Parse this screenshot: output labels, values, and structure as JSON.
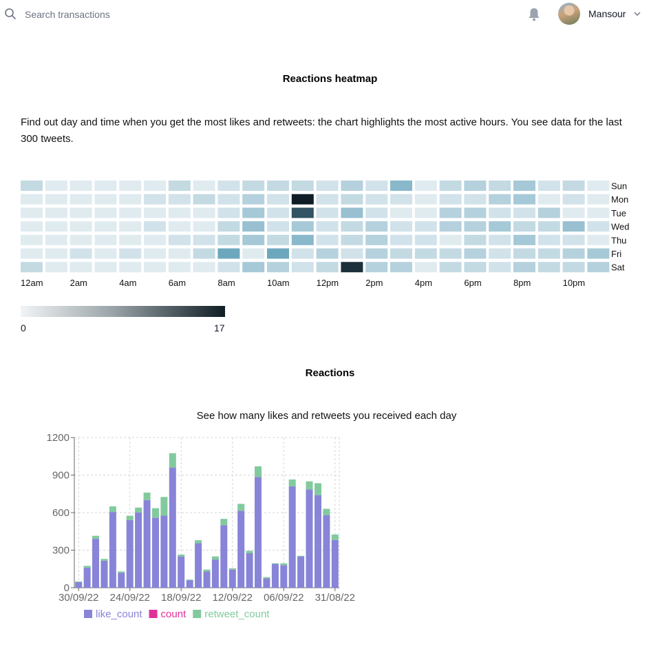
{
  "search": {
    "placeholder": "Search transactions"
  },
  "user": {
    "name": "Mansour"
  },
  "heatmap_section": {
    "title": "Reactions heatmap",
    "description": "Find out day and time when you get the most likes and retweets: the chart highlights the most active hours. You see data for the last 300 tweets.",
    "legend_min": "0",
    "legend_max": "17"
  },
  "reactions_section": {
    "title": "Reactions",
    "subtitle": "See how many likes and retweets you received each day"
  },
  "chart_data": [
    {
      "type": "heatmap",
      "title": "Reactions heatmap",
      "rows": [
        "Sun",
        "Mon",
        "Tue",
        "Wed",
        "Thu",
        "Fri",
        "Sat"
      ],
      "columns": [
        "12am",
        "1am",
        "2am",
        "3am",
        "4am",
        "5am",
        "6am",
        "7am",
        "8am",
        "9am",
        "10am",
        "11am",
        "12pm",
        "1pm",
        "2pm",
        "3pm",
        "4pm",
        "5pm",
        "6pm",
        "7pm",
        "8pm",
        "9pm",
        "10pm",
        "11pm"
      ],
      "x_tick_labels": [
        "12am",
        "2am",
        "4am",
        "6am",
        "8am",
        "10am",
        "12pm",
        "2pm",
        "4pm",
        "6pm",
        "8pm",
        "10pm"
      ],
      "value_range": [
        0,
        17
      ],
      "values": [
        [
          3,
          1,
          1,
          1,
          1,
          1,
          3,
          1,
          2,
          3,
          3,
          3,
          2,
          4,
          2,
          7,
          1,
          3,
          4,
          3,
          5,
          2,
          3,
          1
        ],
        [
          1,
          1,
          1,
          1,
          1,
          2,
          2,
          3,
          2,
          4,
          2,
          17,
          2,
          3,
          2,
          2,
          1,
          2,
          2,
          4,
          5,
          1,
          2,
          1
        ],
        [
          1,
          1,
          1,
          1,
          1,
          1,
          1,
          1,
          2,
          5,
          2,
          14,
          2,
          6,
          2,
          1,
          1,
          4,
          4,
          2,
          2,
          4,
          1,
          1
        ],
        [
          1,
          1,
          1,
          1,
          1,
          2,
          1,
          1,
          3,
          6,
          2,
          5,
          2,
          3,
          4,
          2,
          2,
          4,
          4,
          5,
          3,
          3,
          6,
          2
        ],
        [
          1,
          1,
          1,
          1,
          1,
          1,
          2,
          2,
          3,
          5,
          3,
          7,
          2,
          3,
          4,
          2,
          2,
          1,
          3,
          2,
          5,
          2,
          2,
          1
        ],
        [
          1,
          1,
          2,
          1,
          2,
          1,
          1,
          3,
          9,
          1,
          9,
          2,
          4,
          2,
          4,
          3,
          3,
          3,
          4,
          2,
          3,
          3,
          4,
          5
        ],
        [
          3,
          1,
          1,
          1,
          1,
          1,
          1,
          1,
          2,
          5,
          4,
          2,
          3,
          16,
          4,
          4,
          1,
          3,
          3,
          2,
          4,
          3,
          3,
          4
        ]
      ]
    },
    {
      "type": "bar",
      "stacked": true,
      "subtitle": "See how many likes and retweets you received each day",
      "x_tick_labels": [
        "30/09/22",
        "24/09/22",
        "18/09/22",
        "12/09/22",
        "06/09/22",
        "31/08/22"
      ],
      "y_ticks": [
        0,
        300,
        600,
        900,
        1200
      ],
      "ylim": [
        0,
        1200
      ],
      "grid": true,
      "legend_position": "bottom",
      "series": [
        {
          "name": "like_count",
          "color": "#8884d8",
          "values": [
            45,
            160,
            390,
            215,
            605,
            120,
            540,
            600,
            700,
            560,
            575,
            960,
            250,
            60,
            355,
            130,
            225,
            500,
            145,
            615,
            275,
            885,
            75,
            190,
            180,
            810,
            250,
            785,
            740,
            580,
            380
          ]
        },
        {
          "name": "count",
          "color": "#e0309a",
          "values": [
            0,
            0,
            0,
            0,
            0,
            0,
            0,
            0,
            0,
            0,
            0,
            0,
            0,
            0,
            0,
            0,
            0,
            0,
            0,
            0,
            0,
            0,
            0,
            0,
            0,
            0,
            0,
            0,
            0,
            0,
            0
          ]
        },
        {
          "name": "retweet_count",
          "color": "#82ca9d",
          "values": [
            5,
            15,
            25,
            15,
            45,
            10,
            35,
            40,
            60,
            75,
            150,
            115,
            15,
            5,
            25,
            15,
            25,
            50,
            10,
            55,
            20,
            85,
            10,
            5,
            15,
            55,
            5,
            65,
            95,
            50,
            45
          ]
        }
      ]
    }
  ]
}
